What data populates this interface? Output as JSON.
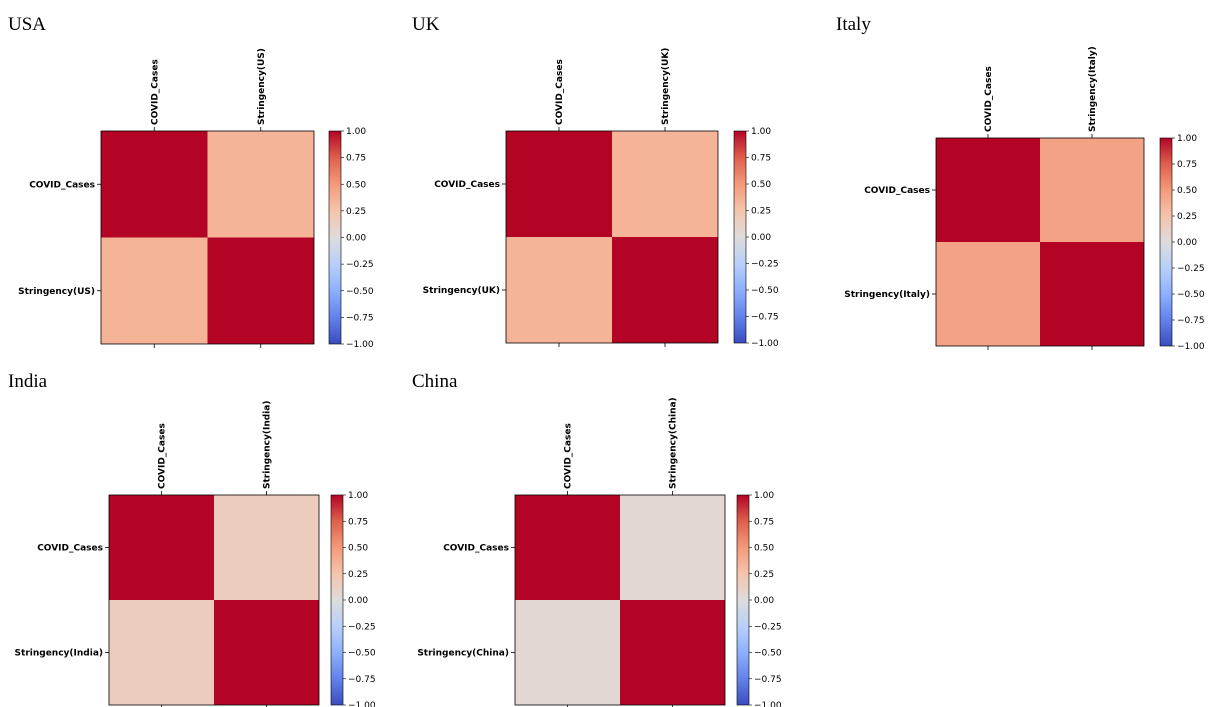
{
  "colormap": {
    "name": "coolwarm",
    "low": "#3b4cc0",
    "mid": "#dddddd",
    "high": "#b40426"
  },
  "chart_data": [
    {
      "type": "heatmap",
      "title": "USA",
      "labels": [
        "COVID_Cases",
        "Stringency(US)"
      ],
      "matrix": [
        [
          1.0,
          0.35
        ],
        [
          0.35,
          1.0
        ]
      ],
      "vmin": -1.0,
      "vmax": 1.0,
      "colorbar_ticks": [
        "1.00",
        "0.75",
        "0.50",
        "0.25",
        "0.00",
        "−0.25",
        "−0.50",
        "−0.75",
        "−1.00"
      ]
    },
    {
      "type": "heatmap",
      "title": "UK",
      "labels": [
        "COVID_Cases",
        "Stringency(UK)"
      ],
      "matrix": [
        [
          1.0,
          0.35
        ],
        [
          0.35,
          1.0
        ]
      ],
      "vmin": -1.0,
      "vmax": 1.0,
      "colorbar_ticks": [
        "1.00",
        "0.75",
        "0.50",
        "0.25",
        "0.00",
        "−0.25",
        "−0.50",
        "−0.75",
        "−1.00"
      ]
    },
    {
      "type": "heatmap",
      "title": "Italy",
      "labels": [
        "COVID_Cases",
        "Stringency(Italy)"
      ],
      "matrix": [
        [
          1.0,
          0.45
        ],
        [
          0.45,
          1.0
        ]
      ],
      "vmin": -1.0,
      "vmax": 1.0,
      "colorbar_ticks": [
        "1.00",
        "0.75",
        "0.50",
        "0.25",
        "0.00",
        "−0.25",
        "−0.50",
        "−0.75",
        "−1.00"
      ]
    },
    {
      "type": "heatmap",
      "title": "India",
      "labels": [
        "COVID_Cases",
        "Stringency(India)"
      ],
      "matrix": [
        [
          1.0,
          0.16
        ],
        [
          0.16,
          1.0
        ]
      ],
      "vmin": -1.0,
      "vmax": 1.0,
      "colorbar_ticks": [
        "1.00",
        "0.75",
        "0.50",
        "0.25",
        "0.00",
        "−0.25",
        "−0.50",
        "−0.75",
        "−1.00"
      ]
    },
    {
      "type": "heatmap",
      "title": "China",
      "labels": [
        "COVID_Cases",
        "Stringency(China)"
      ],
      "matrix": [
        [
          1.0,
          0.05
        ],
        [
          0.05,
          1.0
        ]
      ],
      "vmin": -1.0,
      "vmax": 1.0,
      "colorbar_ticks": [
        "1.00",
        "0.75",
        "0.50",
        "0.25",
        "0.00",
        "−0.25",
        "−0.50",
        "−0.75",
        "−1.00"
      ]
    }
  ]
}
